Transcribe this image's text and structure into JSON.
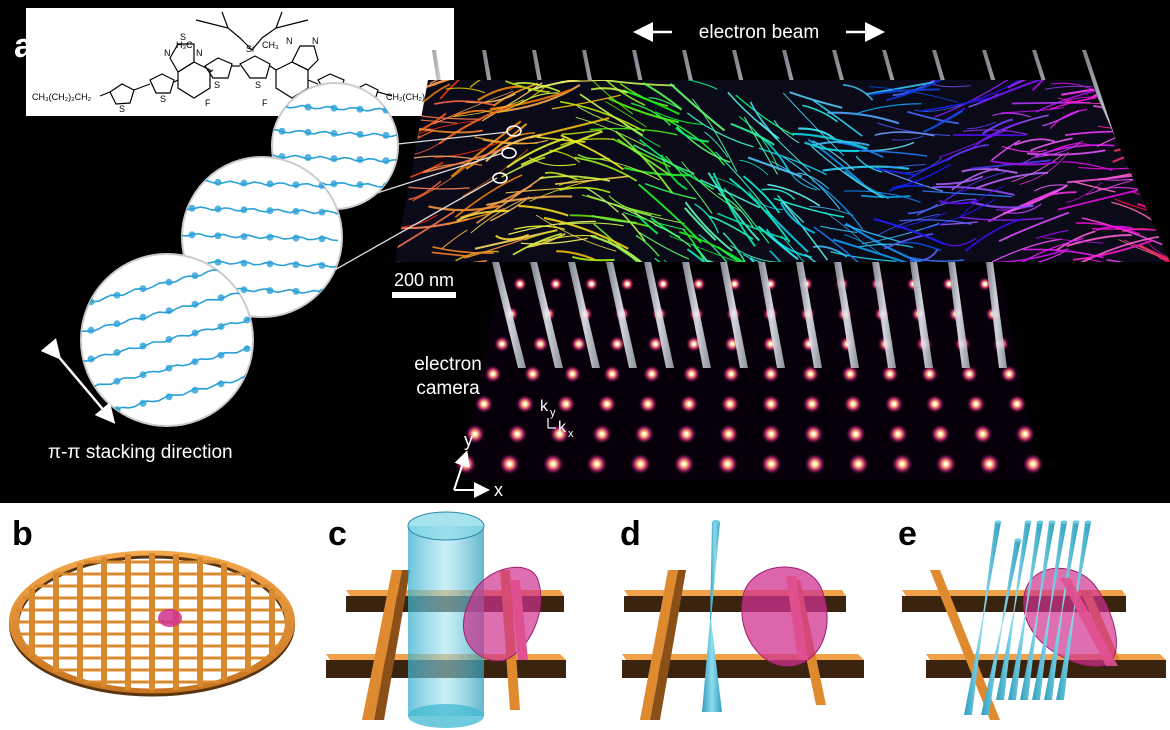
{
  "panel_a": {
    "label": "a",
    "molecule": {
      "left_chain": "CH₃(CH₂)₂CH₂",
      "right_chain": "CH₂(CH₂)₄CH₃",
      "atoms": [
        "S",
        "S",
        "N",
        "N",
        "S",
        "S",
        "F",
        "F",
        "Si",
        "H₃C",
        "CH₃",
        "S",
        "S",
        "N",
        "N",
        "S"
      ]
    },
    "beam_label": "electron beam",
    "scale_bar_label": "200 nm",
    "camera_label_line1": "electron",
    "camera_label_line2": "camera",
    "ky_label": "k",
    "ky_sub": "y",
    "kx_label": "k",
    "kx_sub": "x",
    "axis_y": "y",
    "axis_x": "x",
    "stacking_label": "π-π stacking direction"
  },
  "panel_b": {
    "label": "b"
  },
  "panel_c": {
    "label": "c"
  },
  "panel_d": {
    "label": "d"
  },
  "panel_e": {
    "label": "e"
  },
  "colors": {
    "background_top": "#000000",
    "background_bottom": "#ffffff",
    "grid_orange": "#d9892e",
    "grid_dark": "#3a2410",
    "sample_magenta": "#d0328f",
    "beam_cyan": "#3fb8d0",
    "beam_grey": "#c8ccd4",
    "polymer_blue": "#2aa0d8"
  },
  "icons": [
    "double-arrow-icon",
    "axis-arrow-icon"
  ]
}
